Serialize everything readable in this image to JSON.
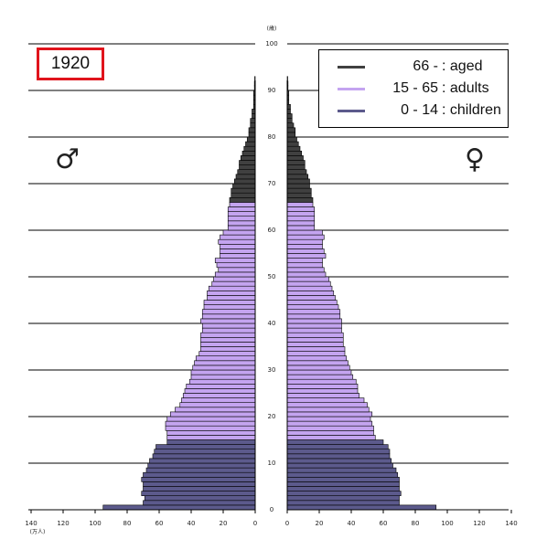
{
  "year_label": "1920",
  "male_symbol": "♂",
  "female_symbol": "♀",
  "legend": [
    {
      "range": "66 -",
      "label": ": aged",
      "color": "#404040"
    },
    {
      "range": "15 - 65",
      "label": ": adults",
      "color": "#c4a4f0"
    },
    {
      "range": "0 - 14",
      "label": ": children",
      "color": "#5c5a8c"
    }
  ],
  "chart_data": {
    "type": "bar",
    "orientation": "horizontal-pyramid",
    "title": "1920",
    "age_axis": {
      "label": "(歳)",
      "ticks": [
        0,
        10,
        20,
        30,
        40,
        50,
        60,
        70,
        80,
        90,
        100
      ],
      "range": [
        0,
        100
      ]
    },
    "population_axis": {
      "label": "(万人)",
      "ticks": [
        140,
        120,
        100,
        80,
        60,
        40,
        20,
        0
      ],
      "range": [
        0,
        140
      ]
    },
    "colors": {
      "aged": "#404040",
      "adults": "#c4a4f0",
      "children": "#5c5a8c"
    },
    "ages": [
      0,
      1,
      2,
      3,
      4,
      5,
      6,
      7,
      8,
      9,
      10,
      11,
      12,
      13,
      14,
      15,
      16,
      17,
      18,
      19,
      20,
      21,
      22,
      23,
      24,
      25,
      26,
      27,
      28,
      29,
      30,
      31,
      32,
      33,
      34,
      35,
      36,
      37,
      38,
      39,
      40,
      41,
      42,
      43,
      44,
      45,
      46,
      47,
      48,
      49,
      50,
      51,
      52,
      53,
      54,
      55,
      56,
      57,
      58,
      59,
      60,
      61,
      62,
      63,
      64,
      65,
      66,
      67,
      68,
      69,
      70,
      71,
      72,
      73,
      74,
      75,
      76,
      77,
      78,
      79,
      80,
      81,
      82,
      83,
      84,
      85,
      86,
      87,
      88,
      89,
      90,
      91,
      92
    ],
    "male": [
      95,
      70,
      69,
      71,
      70,
      70,
      71,
      70,
      68,
      67,
      66,
      64,
      63,
      62,
      55,
      55,
      55,
      56,
      56,
      55,
      53,
      50,
      47,
      46,
      45,
      44,
      43,
      41,
      40,
      40,
      39,
      38,
      37,
      35,
      34,
      34,
      34,
      34,
      33,
      33,
      34,
      33,
      33,
      32,
      32,
      30,
      30,
      29,
      27,
      26,
      25,
      23,
      24,
      25,
      22,
      22,
      22,
      23,
      22,
      20,
      17,
      17,
      17,
      17,
      17,
      16,
      16,
      15,
      15,
      14,
      13,
      12,
      11,
      10,
      10,
      9,
      8,
      7,
      6,
      5,
      4,
      4,
      3,
      3,
      2,
      2,
      1,
      1,
      1,
      1,
      0.5,
      0.5,
      0.3
    ],
    "female": [
      93,
      70,
      70,
      71,
      70,
      70,
      70,
      69,
      68,
      66,
      65,
      64,
      64,
      63,
      60,
      55,
      54,
      54,
      53,
      52,
      53,
      51,
      50,
      48,
      45,
      44,
      44,
      43,
      41,
      40,
      39,
      38,
      37,
      36,
      36,
      35,
      35,
      35,
      34,
      34,
      34,
      33,
      33,
      32,
      31,
      30,
      29,
      28,
      27,
      26,
      24,
      23,
      22,
      22,
      24,
      23,
      22,
      22,
      23,
      22,
      17,
      17,
      17,
      17,
      17,
      16,
      16,
      15,
      15,
      14,
      14,
      13,
      12,
      11,
      11,
      10,
      9,
      8,
      7,
      6,
      5,
      5,
      4,
      3,
      3,
      2,
      2,
      1,
      1,
      1,
      0.5,
      0.5,
      0.3
    ]
  }
}
